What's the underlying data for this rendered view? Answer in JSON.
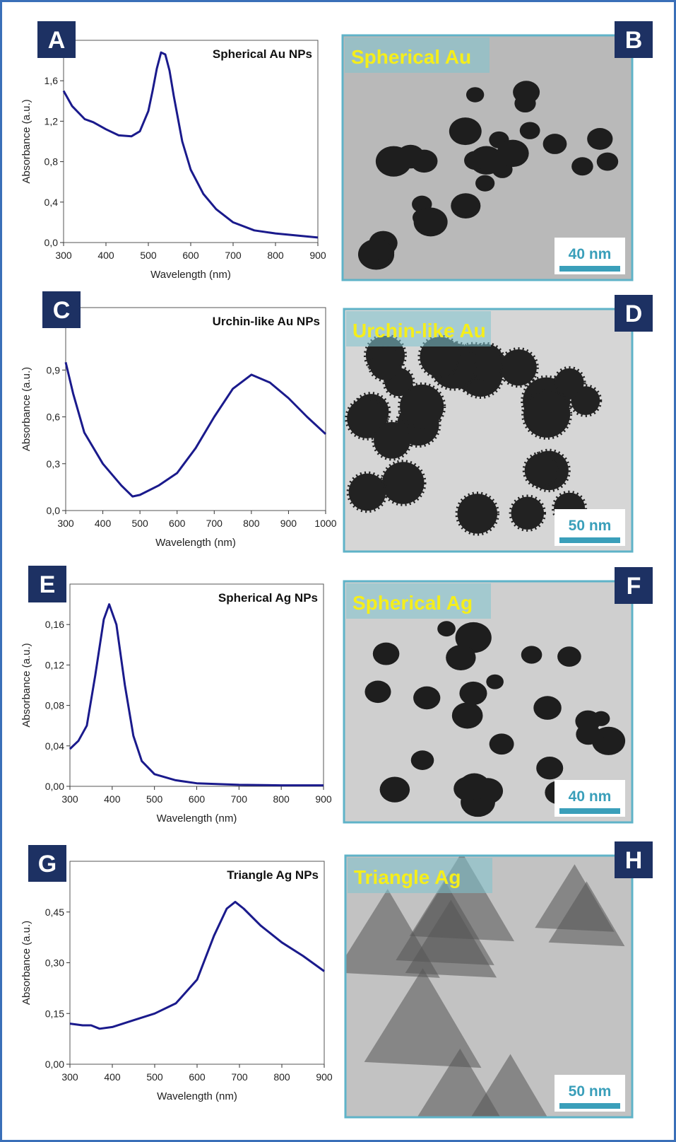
{
  "chart_data": [
    {
      "type": "line",
      "label": "A",
      "title": "Spherical Au NPs",
      "xlabel": "Wavelength (nm)",
      "ylabel": "Absorbance (a.u.)",
      "color": "#1a1a8c",
      "x": [
        300,
        320,
        350,
        370,
        400,
        430,
        460,
        480,
        500,
        510,
        520,
        530,
        540,
        550,
        560,
        580,
        600,
        630,
        660,
        700,
        750,
        800,
        850,
        900
      ],
      "values": [
        1.5,
        1.35,
        1.22,
        1.19,
        1.12,
        1.06,
        1.05,
        1.1,
        1.3,
        1.5,
        1.72,
        1.88,
        1.86,
        1.7,
        1.45,
        1.0,
        0.72,
        0.48,
        0.33,
        0.2,
        0.12,
        0.09,
        0.07,
        0.05
      ],
      "xlim": [
        300,
        900
      ],
      "xticks": [
        300,
        400,
        500,
        600,
        700,
        800,
        900
      ],
      "ylim": [
        0,
        2.0
      ],
      "yticks": [
        {
          "value": 0,
          "label": "0,0"
        },
        {
          "value": 0.4,
          "label": "0,4"
        },
        {
          "value": 0.8,
          "label": "0,8"
        },
        {
          "value": 1.2,
          "label": "1,2"
        },
        {
          "value": 1.6,
          "label": "1,6"
        }
      ]
    },
    {
      "type": "line",
      "label": "C",
      "title": "Urchin-like Au NPs",
      "xlabel": "Wavelength (nm)",
      "ylabel": "Absorbance (a.u.)",
      "color": "#1a1a8c",
      "x": [
        300,
        320,
        350,
        400,
        450,
        480,
        500,
        550,
        600,
        650,
        700,
        750,
        800,
        850,
        900,
        950,
        1000
      ],
      "values": [
        0.95,
        0.75,
        0.5,
        0.3,
        0.16,
        0.09,
        0.1,
        0.16,
        0.24,
        0.4,
        0.6,
        0.78,
        0.87,
        0.82,
        0.72,
        0.6,
        0.49
      ],
      "xlim": [
        300,
        1000
      ],
      "xticks": [
        300,
        400,
        500,
        600,
        700,
        800,
        900,
        1000
      ],
      "ylim": [
        0,
        1.3
      ],
      "yticks": [
        {
          "value": 0,
          "label": "0,0"
        },
        {
          "value": 0.3,
          "label": "0,3"
        },
        {
          "value": 0.6,
          "label": "0,6"
        },
        {
          "value": 0.9,
          "label": "0,9"
        }
      ]
    },
    {
      "type": "line",
      "label": "E",
      "title": "Spherical Ag NPs",
      "xlabel": "Wavelength (nm)",
      "ylabel": "Absorbance (a.u.)",
      "color": "#1a1a8c",
      "x": [
        300,
        320,
        340,
        360,
        380,
        393,
        410,
        430,
        450,
        470,
        500,
        550,
        600,
        700,
        800,
        900
      ],
      "values": [
        0.037,
        0.045,
        0.06,
        0.11,
        0.165,
        0.18,
        0.16,
        0.1,
        0.05,
        0.025,
        0.012,
        0.006,
        0.003,
        0.0015,
        0.001,
        0.001
      ],
      "xlim": [
        300,
        900
      ],
      "xticks": [
        300,
        400,
        500,
        600,
        700,
        800,
        900
      ],
      "ylim": [
        0,
        0.2
      ],
      "yticks": [
        {
          "value": 0,
          "label": "0,00"
        },
        {
          "value": 0.04,
          "label": "0,04"
        },
        {
          "value": 0.08,
          "label": "0,08"
        },
        {
          "value": 0.12,
          "label": "0,12"
        },
        {
          "value": 0.16,
          "label": "0,16"
        }
      ]
    },
    {
      "type": "line",
      "label": "G",
      "title": "Triangle Ag NPs",
      "xlabel": "Wavelength (nm)",
      "ylabel": "Absorbance (a.u.)",
      "color": "#1a1a8c",
      "x": [
        300,
        330,
        350,
        370,
        400,
        450,
        500,
        550,
        600,
        640,
        670,
        690,
        710,
        750,
        800,
        850,
        900
      ],
      "values": [
        0.12,
        0.115,
        0.115,
        0.105,
        0.11,
        0.13,
        0.15,
        0.18,
        0.25,
        0.38,
        0.46,
        0.48,
        0.46,
        0.41,
        0.36,
        0.32,
        0.275
      ],
      "xlim": [
        300,
        900
      ],
      "xticks": [
        300,
        400,
        500,
        600,
        700,
        800,
        900
      ],
      "ylim": [
        0,
        0.6
      ],
      "yticks": [
        {
          "value": 0,
          "label": "0,00"
        },
        {
          "value": 0.15,
          "label": "0,15"
        },
        {
          "value": 0.3,
          "label": "0,30"
        },
        {
          "value": 0.45,
          "label": "0,45"
        }
      ]
    }
  ],
  "images": [
    {
      "label": "B",
      "caption": "Spherical Au",
      "scale_bar": "40 nm"
    },
    {
      "label": "D",
      "caption": "Urchin-like Au",
      "scale_bar": "50 nm"
    },
    {
      "label": "F",
      "caption": "Spherical Ag",
      "scale_bar": "40 nm"
    },
    {
      "label": "H",
      "caption": "Triangle Ag",
      "scale_bar": "50 nm"
    }
  ]
}
